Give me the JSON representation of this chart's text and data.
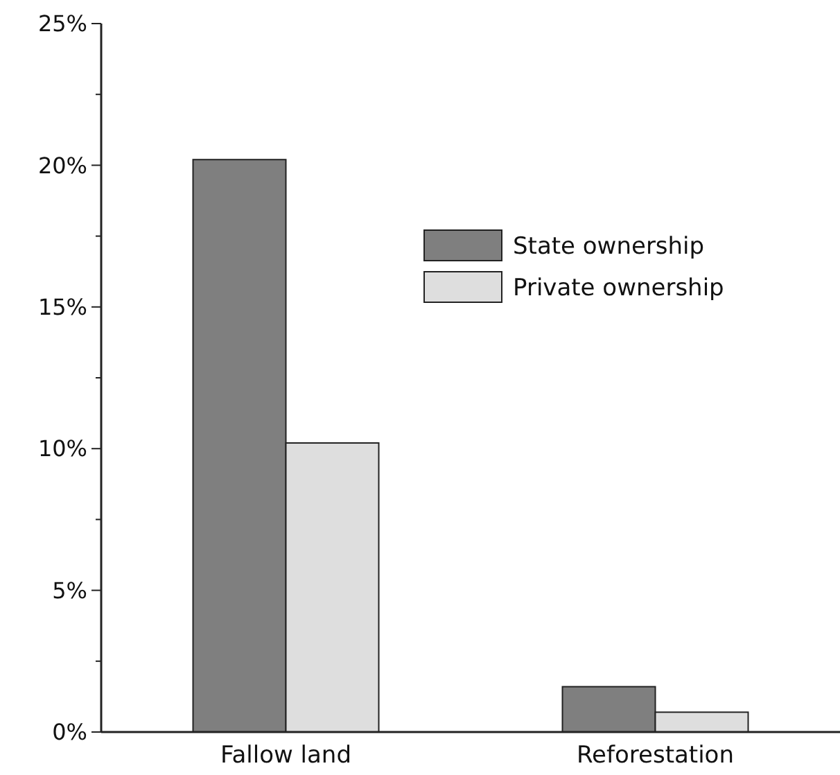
{
  "chart_data": {
    "type": "bar",
    "categories": [
      "Fallow land",
      "Reforestation"
    ],
    "series": [
      {
        "name": "State ownership",
        "color": "#7f7f7f",
        "values": [
          20.2,
          1.6
        ]
      },
      {
        "name": "Private ownership",
        "color": "#dedede",
        "values": [
          10.2,
          0.7
        ]
      }
    ],
    "ylim": [
      0,
      25
    ],
    "yticks": [
      {
        "value": 0,
        "label": "0%"
      },
      {
        "value": 2.5,
        "label": null
      },
      {
        "value": 5,
        "label": "5%"
      },
      {
        "value": 7.5,
        "label": null
      },
      {
        "value": 10,
        "label": "10%"
      },
      {
        "value": 12.5,
        "label": null
      },
      {
        "value": 15,
        "label": "15%"
      },
      {
        "value": 17.5,
        "label": null
      },
      {
        "value": 20,
        "label": "20%"
      },
      {
        "value": 22.5,
        "label": null
      },
      {
        "value": 25,
        "label": "25%"
      }
    ],
    "grid": false,
    "legend": "top right"
  }
}
